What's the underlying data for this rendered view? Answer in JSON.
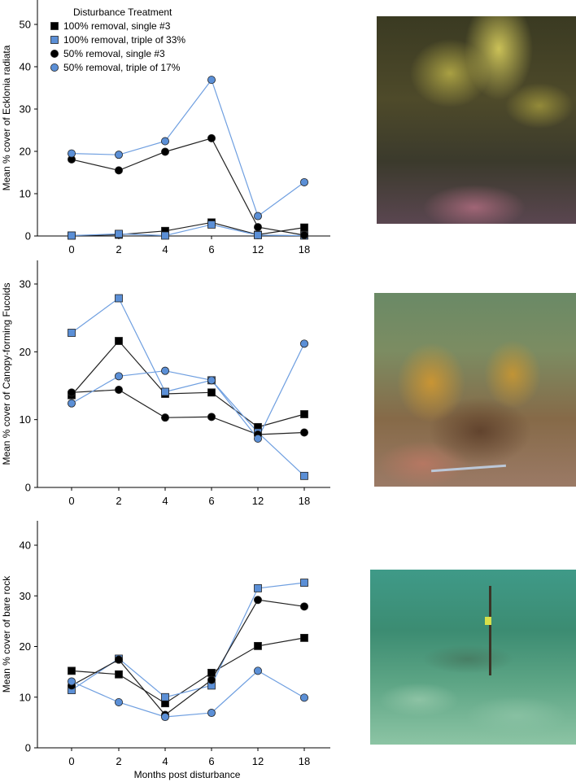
{
  "legend": {
    "title": "Disturbance Treatment",
    "entries": [
      {
        "label": "100% removal, single #3",
        "marker": "square",
        "color": "#000000",
        "line_color": "#222222"
      },
      {
        "label": "100% removal, triple of 33%",
        "marker": "square",
        "color": "#5b8fd6",
        "line_color": "#6f9fe0"
      },
      {
        "label": "50% removal, single #3",
        "marker": "circle",
        "color": "#000000",
        "line_color": "#222222"
      },
      {
        "label": "50% removal, triple of 17%",
        "marker": "circle",
        "color": "#5b8fd6",
        "line_color": "#6f9fe0"
      }
    ]
  },
  "xlabel": "Months post disturbance",
  "photos": [
    {
      "subject": "Ecklonia kelp canopy"
    },
    {
      "subject": "Canopy-forming fucoids"
    },
    {
      "subject": "Bare rock with marker stake"
    }
  ],
  "chart_data": [
    {
      "type": "line",
      "ylabel": "Mean % cover of Ecklonia radiata",
      "categories": [
        "0",
        "2",
        "4",
        "6",
        "12",
        "18"
      ],
      "ylim": [
        0,
        50
      ],
      "yticks": [
        0,
        10,
        20,
        30,
        40,
        50
      ],
      "series": [
        {
          "name": "100% removal, single #3",
          "values": [
            0.1,
            0.3,
            1.2,
            3.2,
            0.3,
            2.0
          ]
        },
        {
          "name": "100% removal, triple of 33%",
          "values": [
            0.1,
            0.5,
            0.1,
            2.7,
            0.2,
            0.1
          ]
        },
        {
          "name": "50% removal, single #3",
          "values": [
            18.1,
            15.5,
            19.9,
            23.1,
            2.1,
            0.2
          ]
        },
        {
          "name": "50% removal, triple of 17%",
          "values": [
            19.5,
            19.2,
            22.4,
            36.9,
            4.7,
            12.7
          ]
        }
      ]
    },
    {
      "type": "line",
      "ylabel": "Mean % cover of Canopy-forming Fucoids",
      "categories": [
        "0",
        "2",
        "4",
        "6",
        "12",
        "18"
      ],
      "ylim": [
        0,
        30
      ],
      "yticks": [
        0,
        10,
        20,
        30
      ],
      "series": [
        {
          "name": "100% removal, single #3",
          "values": [
            13.6,
            21.6,
            13.8,
            14.0,
            8.9,
            10.8
          ]
        },
        {
          "name": "100% removal, triple of 33%",
          "values": [
            22.8,
            27.9,
            14.1,
            15.8,
            8.1,
            1.7
          ]
        },
        {
          "name": "50% removal, single #3",
          "values": [
            14.0,
            14.4,
            10.3,
            10.4,
            7.8,
            8.1
          ]
        },
        {
          "name": "50% removal, triple of 17%",
          "values": [
            12.4,
            16.4,
            17.2,
            15.8,
            7.2,
            21.2
          ]
        }
      ]
    },
    {
      "type": "line",
      "ylabel": "Mean % cover of bare rock",
      "categories": [
        "0",
        "2",
        "4",
        "6",
        "12",
        "18"
      ],
      "ylim": [
        0,
        42
      ],
      "yticks": [
        0,
        10,
        20,
        30,
        40
      ],
      "series": [
        {
          "name": "100% removal, single #3",
          "values": [
            15.2,
            14.5,
            8.8,
            14.8,
            20.1,
            21.7
          ]
        },
        {
          "name": "100% removal, triple of 33%",
          "values": [
            11.4,
            17.6,
            10.0,
            12.3,
            31.5,
            32.6
          ]
        },
        {
          "name": "50% removal, single #3",
          "values": [
            12.3,
            17.4,
            6.5,
            13.4,
            29.2,
            27.9
          ]
        },
        {
          "name": "50% removal, triple of 17%",
          "values": [
            13.1,
            9.0,
            6.1,
            6.9,
            15.2,
            9.9
          ]
        }
      ]
    }
  ]
}
